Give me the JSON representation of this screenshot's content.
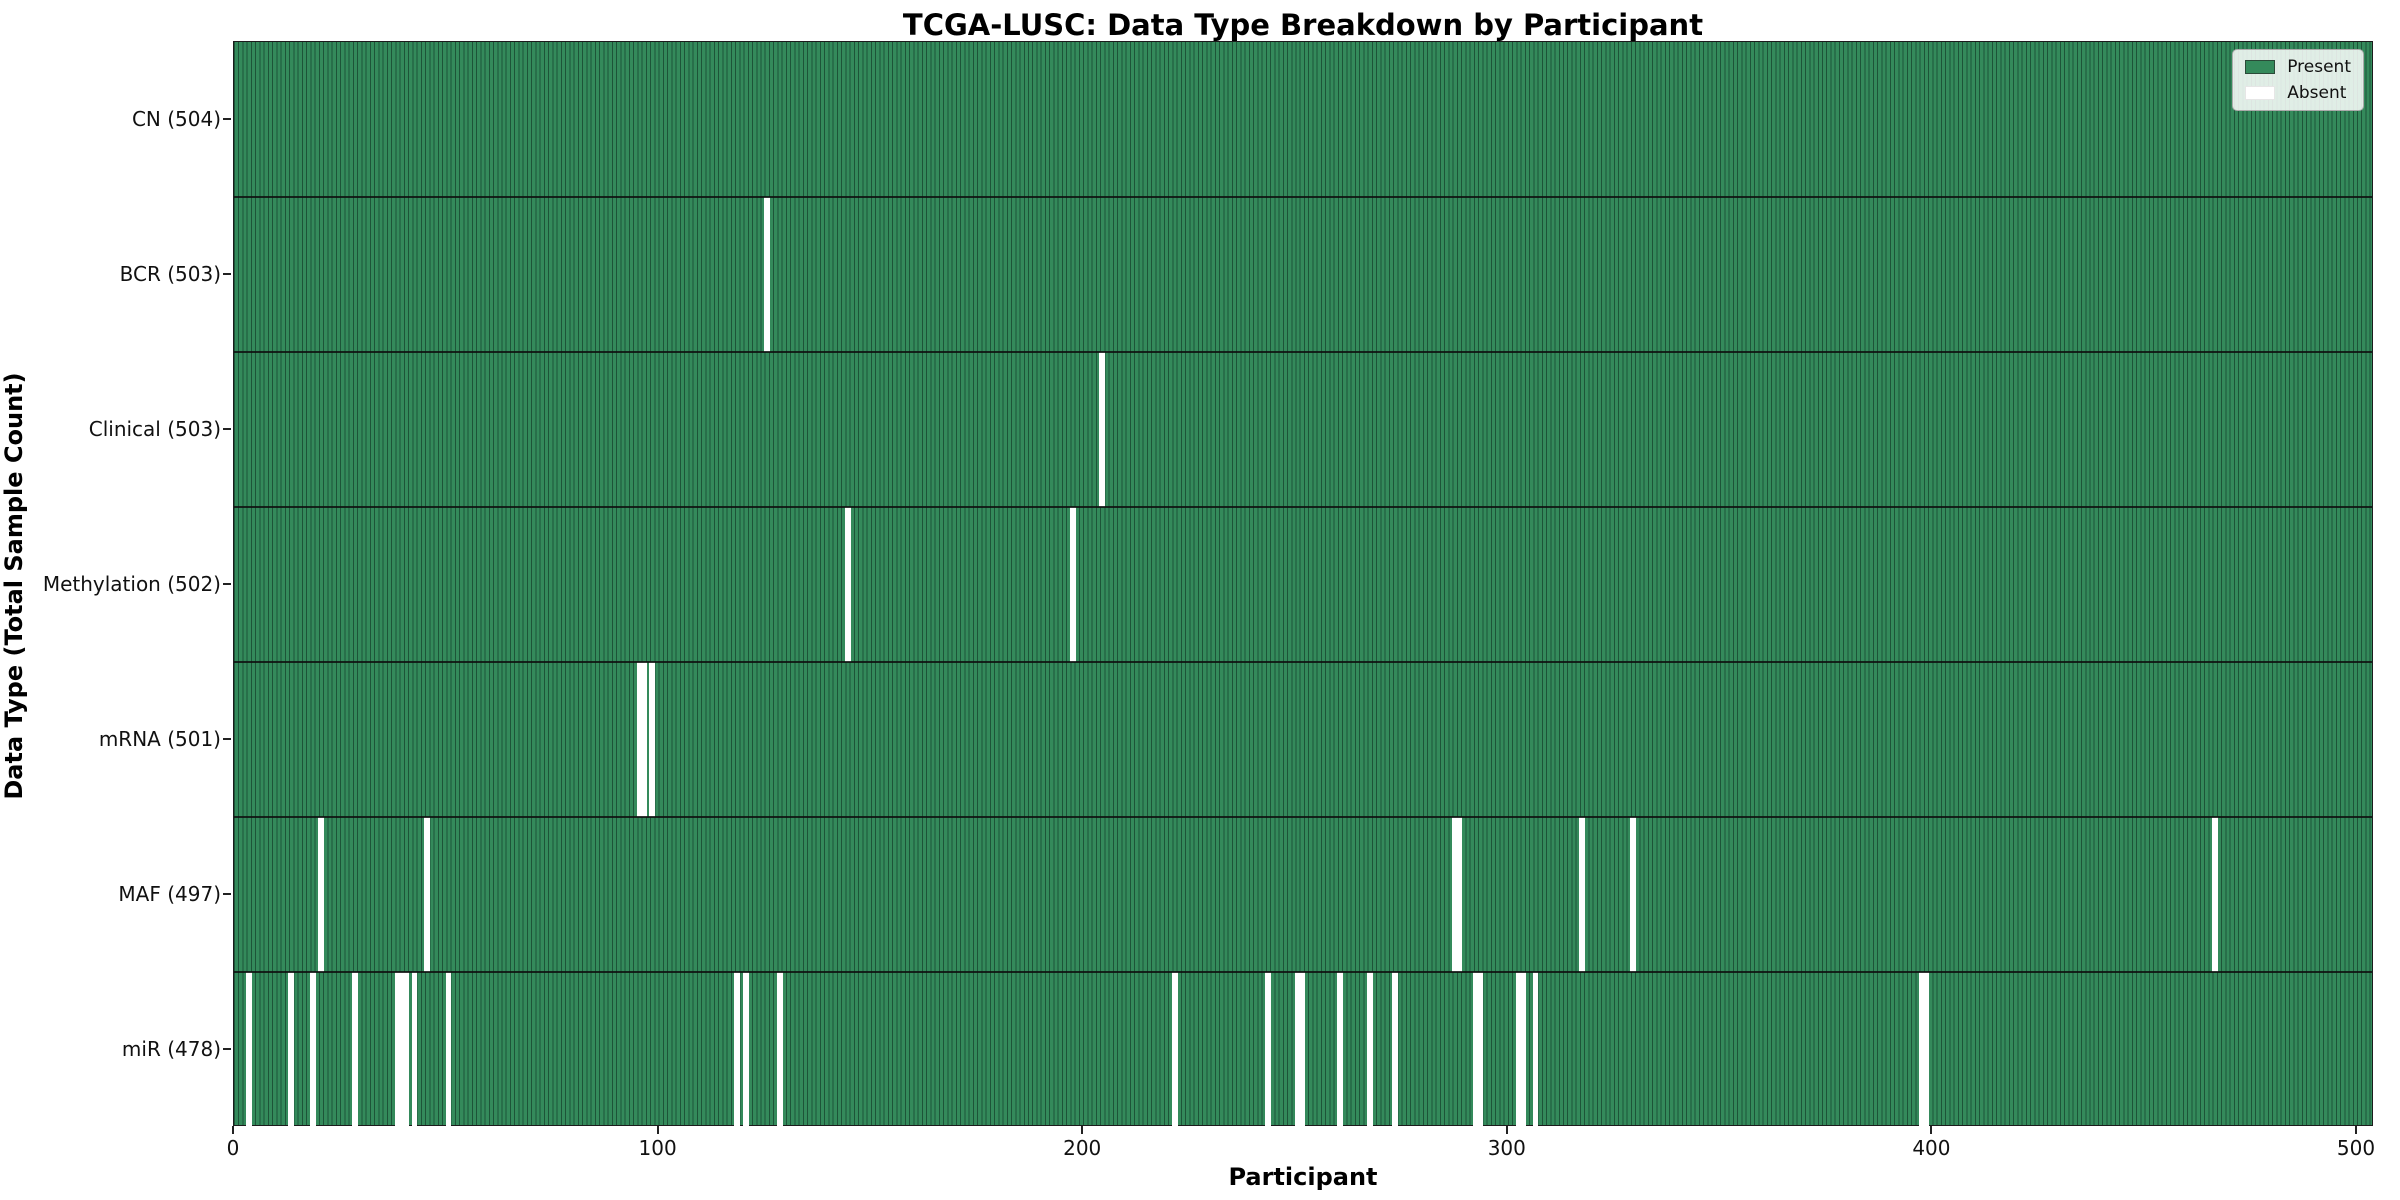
{
  "colors": {
    "present": "#348a5b",
    "cell_edge": "#1d5438",
    "absent": "#ffffff",
    "spine": "#1c1c1c"
  },
  "legend": {
    "present_label": "Present",
    "absent_label": "Absent"
  },
  "chart_data": {
    "type": "heatmap",
    "title": "TCGA-LUSC: Data Type Breakdown by Participant",
    "xlabel": "Participant",
    "ylabel": "Data Type (Total Sample Count)",
    "xlim": [
      0,
      504
    ],
    "x_ticks": [
      0,
      100,
      200,
      300,
      400,
      500
    ],
    "legend": [
      "Present",
      "Absent"
    ],
    "legend_position": "upper right",
    "grid": false,
    "n_participants": 504,
    "rows": [
      {
        "label": "CN (504)",
        "total": 504,
        "absent_participants": []
      },
      {
        "label": "BCR (503)",
        "total": 503,
        "absent_participants": [
          125
        ]
      },
      {
        "label": "Clinical (503)",
        "total": 503,
        "absent_participants": [
          204
        ]
      },
      {
        "label": "Methylation (502)",
        "total": 502,
        "absent_participants": [
          144,
          197
        ]
      },
      {
        "label": "mRNA (501)",
        "total": 501,
        "absent_participants": [
          95,
          96,
          98
        ]
      },
      {
        "label": "MAF (497)",
        "total": 497,
        "absent_participants": [
          20,
          45,
          287,
          288,
          317,
          329,
          466
        ]
      },
      {
        "label": "miR (478)",
        "total": 478,
        "absent_participants": [
          3,
          13,
          18,
          28,
          38,
          39,
          40,
          42,
          50,
          118,
          120,
          128,
          221,
          243,
          250,
          251,
          260,
          267,
          273,
          292,
          293,
          302,
          303,
          306,
          397,
          398
        ]
      }
    ]
  }
}
